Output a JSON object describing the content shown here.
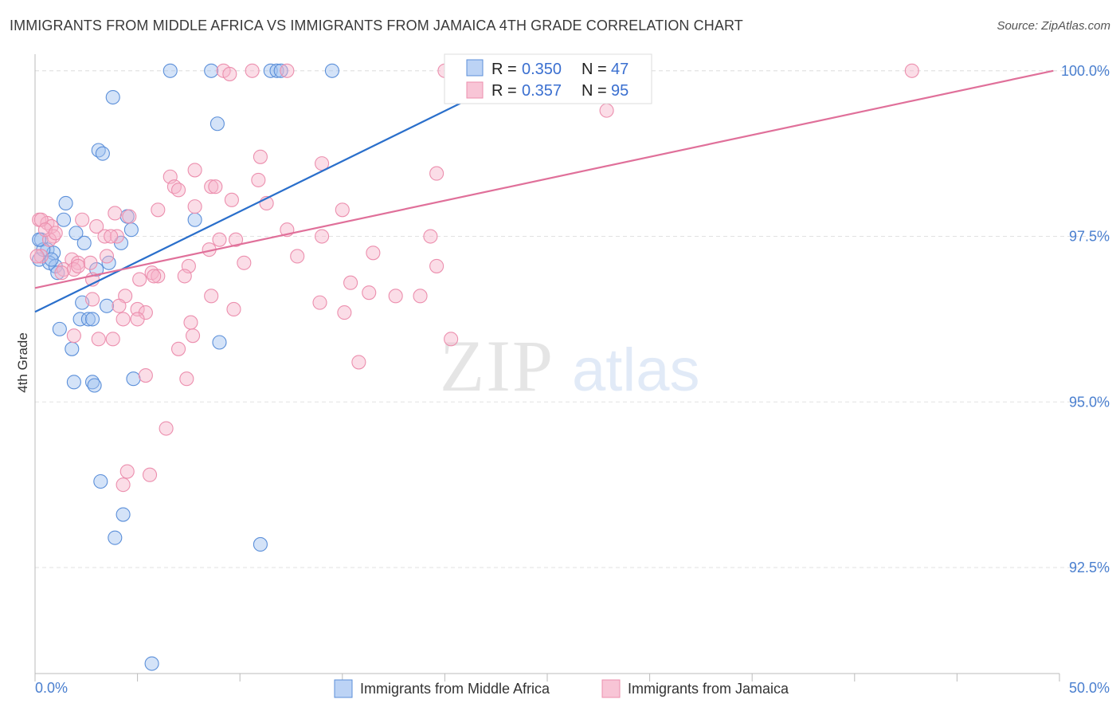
{
  "title": "IMMIGRANTS FROM MIDDLE AFRICA VS IMMIGRANTS FROM JAMAICA 4TH GRADE CORRELATION CHART",
  "source": "Source: ZipAtlas.com",
  "watermark": {
    "zip": "ZIP",
    "atlas": "atlas"
  },
  "colors": {
    "blue": "#5b8fd9",
    "blue_line": "#2a6fcb",
    "pink": "#ec8fae",
    "pink_line": "#e0709a",
    "tick": "#4a7fcf"
  },
  "legend": {
    "r_label": "R =",
    "n_label": "N =",
    "entries": [
      {
        "r": "0.350",
        "n": "47"
      },
      {
        "r": "0.357",
        "n": "95"
      }
    ]
  },
  "chart_data": {
    "type": "scatter",
    "title": "IMMIGRANTS FROM MIDDLE AFRICA VS IMMIGRANTS FROM JAMAICA 4TH GRADE CORRELATION CHART",
    "xlabel": "",
    "ylabel": "4th Grade",
    "xlim": [
      0,
      50
    ],
    "ylim": [
      90.9,
      100.25
    ],
    "x_tick_labels": [
      "0.0%",
      "50.0%"
    ],
    "y_ticks": [
      92.5,
      95.0,
      97.5,
      100.0
    ],
    "y_tick_labels": [
      "92.5%",
      "95.0%",
      "97.5%",
      "100.0%"
    ],
    "grid": true,
    "legend_position": "top-center",
    "series": [
      {
        "name": "Immigrants from Middle Africa",
        "color": "#5b8fd9",
        "trend": [
          [
            0,
            96.36
          ],
          [
            24.0,
            100.0
          ]
        ],
        "points": [
          [
            6.6,
            100.0
          ],
          [
            8.6,
            100.0
          ],
          [
            11.5,
            100.0
          ],
          [
            11.8,
            100.0
          ],
          [
            12.0,
            100.0
          ],
          [
            14.5,
            100.0
          ],
          [
            3.8,
            99.6
          ],
          [
            8.9,
            99.2
          ],
          [
            3.1,
            98.8
          ],
          [
            3.3,
            98.75
          ],
          [
            1.5,
            98.0
          ],
          [
            4.5,
            97.8
          ],
          [
            7.8,
            97.75
          ],
          [
            1.4,
            97.75
          ],
          [
            4.7,
            97.6
          ],
          [
            2.0,
            97.55
          ],
          [
            0.3,
            97.45
          ],
          [
            2.4,
            97.4
          ],
          [
            4.2,
            97.4
          ],
          [
            0.6,
            97.3
          ],
          [
            0.9,
            97.25
          ],
          [
            0.2,
            97.15
          ],
          [
            0.7,
            97.1
          ],
          [
            1.0,
            97.05
          ],
          [
            3.6,
            97.1
          ],
          [
            1.1,
            96.95
          ],
          [
            2.3,
            96.5
          ],
          [
            3.5,
            96.45
          ],
          [
            2.2,
            96.25
          ],
          [
            2.6,
            96.25
          ],
          [
            2.8,
            96.25
          ],
          [
            1.2,
            96.1
          ],
          [
            1.8,
            95.8
          ],
          [
            9.0,
            95.9
          ],
          [
            4.8,
            95.35
          ],
          [
            1.9,
            95.3
          ],
          [
            2.8,
            95.3
          ],
          [
            2.9,
            95.25
          ],
          [
            3.2,
            93.8
          ],
          [
            4.3,
            93.3
          ],
          [
            3.9,
            92.95
          ],
          [
            11.0,
            92.85
          ],
          [
            5.7,
            91.05
          ],
          [
            0.4,
            97.3
          ],
          [
            0.8,
            97.15
          ],
          [
            3.0,
            97.0
          ],
          [
            0.2,
            97.45
          ]
        ]
      },
      {
        "name": "Immigrants from Jamaica",
        "color": "#ec8fae",
        "trend": [
          [
            0,
            96.72
          ],
          [
            49.7,
            100.0
          ]
        ],
        "points": [
          [
            9.2,
            100.0
          ],
          [
            9.5,
            99.95
          ],
          [
            10.6,
            100.0
          ],
          [
            12.3,
            100.0
          ],
          [
            20.0,
            100.0
          ],
          [
            25.6,
            100.0
          ],
          [
            42.8,
            100.0
          ],
          [
            27.9,
            99.4
          ],
          [
            11.0,
            98.7
          ],
          [
            14.0,
            98.6
          ],
          [
            7.8,
            98.5
          ],
          [
            19.6,
            98.45
          ],
          [
            6.6,
            98.4
          ],
          [
            10.9,
            98.35
          ],
          [
            6.8,
            98.25
          ],
          [
            8.6,
            98.25
          ],
          [
            8.8,
            98.25
          ],
          [
            7.0,
            98.2
          ],
          [
            9.6,
            98.05
          ],
          [
            11.3,
            98.0
          ],
          [
            7.8,
            97.95
          ],
          [
            6.0,
            97.9
          ],
          [
            15.0,
            97.9
          ],
          [
            3.9,
            97.85
          ],
          [
            4.6,
            97.8
          ],
          [
            0.2,
            97.75
          ],
          [
            2.3,
            97.75
          ],
          [
            0.6,
            97.7
          ],
          [
            3.0,
            97.65
          ],
          [
            0.8,
            97.65
          ],
          [
            12.3,
            97.6
          ],
          [
            0.9,
            97.5
          ],
          [
            3.4,
            97.5
          ],
          [
            4.0,
            97.5
          ],
          [
            14.0,
            97.5
          ],
          [
            19.3,
            97.5
          ],
          [
            9.0,
            97.45
          ],
          [
            0.7,
            97.45
          ],
          [
            8.5,
            97.3
          ],
          [
            16.5,
            97.25
          ],
          [
            12.8,
            97.2
          ],
          [
            3.5,
            97.2
          ],
          [
            0.3,
            97.2
          ],
          [
            1.8,
            97.15
          ],
          [
            2.1,
            97.1
          ],
          [
            2.7,
            97.1
          ],
          [
            10.2,
            97.1
          ],
          [
            7.5,
            97.05
          ],
          [
            19.6,
            97.05
          ],
          [
            1.4,
            97.0
          ],
          [
            1.9,
            97.0
          ],
          [
            5.7,
            96.95
          ],
          [
            6.0,
            96.9
          ],
          [
            7.3,
            96.9
          ],
          [
            5.1,
            96.85
          ],
          [
            2.8,
            96.85
          ],
          [
            15.4,
            96.8
          ],
          [
            16.3,
            96.65
          ],
          [
            17.6,
            96.6
          ],
          [
            4.4,
            96.6
          ],
          [
            8.6,
            96.6
          ],
          [
            18.8,
            96.6
          ],
          [
            2.8,
            96.55
          ],
          [
            13.9,
            96.5
          ],
          [
            4.1,
            96.45
          ],
          [
            5.0,
            96.4
          ],
          [
            9.7,
            96.4
          ],
          [
            5.4,
            96.35
          ],
          [
            15.1,
            96.35
          ],
          [
            4.3,
            96.25
          ],
          [
            5.0,
            96.25
          ],
          [
            7.6,
            96.2
          ],
          [
            7.7,
            96.0
          ],
          [
            1.9,
            96.0
          ],
          [
            3.1,
            95.95
          ],
          [
            3.8,
            95.95
          ],
          [
            20.3,
            95.95
          ],
          [
            7.0,
            95.8
          ],
          [
            15.8,
            95.6
          ],
          [
            5.4,
            95.4
          ],
          [
            7.4,
            95.35
          ],
          [
            6.4,
            94.6
          ],
          [
            4.5,
            93.95
          ],
          [
            5.6,
            93.9
          ],
          [
            4.3,
            93.75
          ],
          [
            0.3,
            97.75
          ],
          [
            0.5,
            97.6
          ],
          [
            0.1,
            97.2
          ],
          [
            1.3,
            96.95
          ],
          [
            2.1,
            97.05
          ],
          [
            5.8,
            96.9
          ],
          [
            9.8,
            97.45
          ],
          [
            3.7,
            97.5
          ],
          [
            1.0,
            97.55
          ],
          [
            22.1,
            100.0
          ]
        ]
      }
    ]
  },
  "bottom_legend": [
    "Immigrants from Middle Africa",
    "Immigrants from Jamaica"
  ]
}
